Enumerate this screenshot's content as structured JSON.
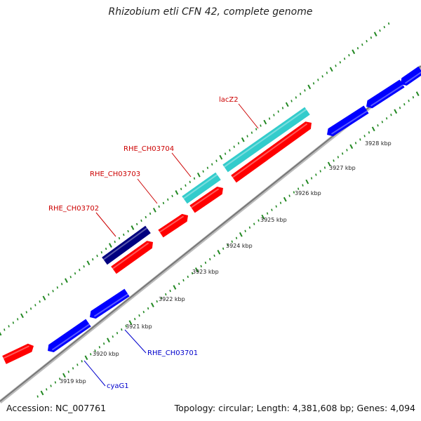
{
  "title": "Rhizobium etli CFN 42, complete genome",
  "footer": {
    "accession": "Accession: NC_007761",
    "summary": "Topology: circular; Length: 4,381,608 bp; Genes: 4,094"
  },
  "colors": {
    "forward_gene": "#ff0000",
    "reverse_gene": "#0000ff",
    "highlight_cyan": "#33cccc",
    "highlight_navy": "#000080",
    "backbone": "#888888",
    "tick": "#228822",
    "label_red": "#cc0000",
    "label_blue": "#0000cc"
  },
  "kbp_ticks": [
    {
      "label": "3919 kbp"
    },
    {
      "label": "3920 kbp"
    },
    {
      "label": "3921 kbp"
    },
    {
      "label": "3922 kbp"
    },
    {
      "label": "3923 kbp"
    },
    {
      "label": "3924 kbp"
    },
    {
      "label": "3925 kbp"
    },
    {
      "label": "3926 kbp"
    },
    {
      "label": "3927 kbp"
    },
    {
      "label": "3928 kbp"
    }
  ],
  "gene_labels": [
    {
      "text": "lacZ2",
      "color": "red"
    },
    {
      "text": "RHE_CH03704",
      "color": "red"
    },
    {
      "text": "RHE_CH03703",
      "color": "red"
    },
    {
      "text": "RHE_CH03702",
      "color": "red"
    },
    {
      "text": "RHE_CH03701",
      "color": "blue"
    },
    {
      "text": "cyaG1",
      "color": "blue"
    }
  ]
}
